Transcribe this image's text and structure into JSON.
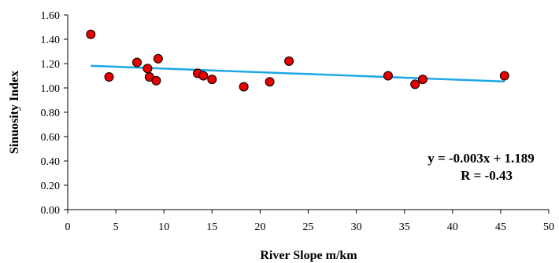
{
  "chart_data": {
    "type": "scatter",
    "title": "",
    "xlabel": "River Slope m/km",
    "ylabel": "Sinuosity Index",
    "xlim": [
      0,
      50
    ],
    "ylim": [
      0,
      1.6
    ],
    "x_ticks": [
      "0",
      "5",
      "10",
      "15",
      "20",
      "25",
      "30",
      "35",
      "40",
      "45",
      "50"
    ],
    "y_ticks": [
      "0.00",
      "0.20",
      "0.40",
      "0.60",
      "0.80",
      "1.00",
      "1.20",
      "1.40",
      "1.60"
    ],
    "grid": false,
    "legend": "none",
    "series": [
      {
        "x": [
          2.4,
          4.3,
          7.2,
          8.3,
          8.5,
          9.2,
          9.4,
          13.5,
          14.1,
          15.0,
          18.3,
          21.0,
          23.0,
          33.3,
          36.1,
          36.9,
          45.4
        ],
        "y": [
          1.44,
          1.09,
          1.21,
          1.16,
          1.09,
          1.06,
          1.24,
          1.12,
          1.1,
          1.07,
          1.01,
          1.05,
          1.22,
          1.1,
          1.03,
          1.07,
          1.1
        ],
        "color": "#e60000"
      }
    ],
    "trendline": {
      "slope": -0.003,
      "intercept": 1.189,
      "x_range": [
        2.4,
        45.4
      ],
      "color": "#1ca8e3"
    },
    "annotations": {
      "equation": "y = -0.003x + 1.189",
      "r_value": "R = -0.43"
    }
  }
}
